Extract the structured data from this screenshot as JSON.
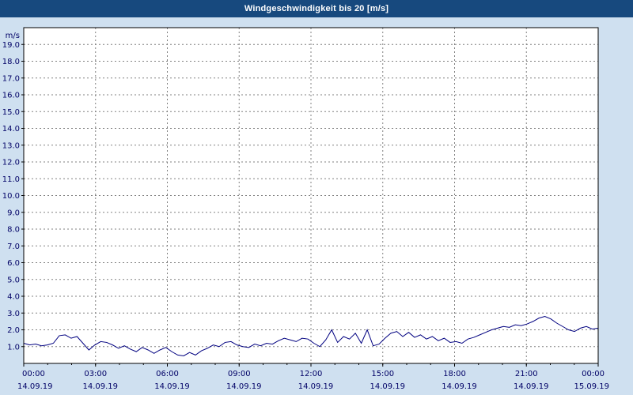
{
  "title_bar": {
    "label": "Windgeschwindigkeit bis 20 [m/s]"
  },
  "colors": {
    "title_bar_bg": "#17497e",
    "title_text": "#ffffff",
    "window_bg": "#cfe0f0",
    "plot_bg": "#ffffff",
    "plot_border": "#000000",
    "grid": "#808080",
    "line": "#000080",
    "tick_text": "#000066"
  },
  "chart_data": {
    "type": "line",
    "title": "Windgeschwindigkeit bis 20 [m/s]",
    "y_unit_label": "m/s",
    "ylim": [
      0,
      20
    ],
    "xlim_hours": [
      0,
      24
    ],
    "grid": "dashed",
    "y_ticks": [
      {
        "value": 1,
        "label": "1.0"
      },
      {
        "value": 2,
        "label": "2.0"
      },
      {
        "value": 3,
        "label": "3.0"
      },
      {
        "value": 4,
        "label": "4.0"
      },
      {
        "value": 5,
        "label": "5.0"
      },
      {
        "value": 6,
        "label": "6.0"
      },
      {
        "value": 7,
        "label": "7.0"
      },
      {
        "value": 8,
        "label": "8.0"
      },
      {
        "value": 9,
        "label": "9.0"
      },
      {
        "value": 10,
        "label": "10.0"
      },
      {
        "value": 11,
        "label": "11.0"
      },
      {
        "value": 12,
        "label": "12.0"
      },
      {
        "value": 13,
        "label": "13.0"
      },
      {
        "value": 14,
        "label": "14.0"
      },
      {
        "value": 15,
        "label": "15.0"
      },
      {
        "value": 16,
        "label": "16.0"
      },
      {
        "value": 17,
        "label": "17.0"
      },
      {
        "value": 18,
        "label": "18.0"
      },
      {
        "value": 19,
        "label": "19.0"
      }
    ],
    "x_ticks": [
      {
        "hour": 0,
        "time": "00:00",
        "date": "14.09.19"
      },
      {
        "hour": 3,
        "time": "03:00",
        "date": "14.09.19"
      },
      {
        "hour": 6,
        "time": "06:00",
        "date": "14.09.19"
      },
      {
        "hour": 9,
        "time": "09:00",
        "date": "14.09.19"
      },
      {
        "hour": 12,
        "time": "12:00",
        "date": "14.09.19"
      },
      {
        "hour": 15,
        "time": "15:00",
        "date": "14.09.19"
      },
      {
        "hour": 18,
        "time": "18:00",
        "date": "14.09.19"
      },
      {
        "hour": 21,
        "time": "21:00",
        "date": "14.09.19"
      },
      {
        "hour": 24,
        "time": "00:00",
        "date": "15.09.19"
      }
    ],
    "series": [
      {
        "name": "Windgeschwindigkeit",
        "color": "#000080",
        "interval_minutes": 15,
        "values": [
          1.2,
          1.1,
          1.15,
          1.05,
          1.1,
          1.2,
          1.65,
          1.7,
          1.5,
          1.6,
          1.2,
          0.8,
          1.1,
          1.3,
          1.25,
          1.1,
          0.9,
          1.05,
          0.85,
          0.7,
          0.95,
          0.8,
          0.6,
          0.8,
          0.95,
          0.7,
          0.5,
          0.45,
          0.65,
          0.5,
          0.75,
          0.9,
          1.1,
          1.0,
          1.25,
          1.3,
          1.1,
          1.0,
          0.95,
          1.15,
          1.05,
          1.2,
          1.15,
          1.35,
          1.5,
          1.4,
          1.3,
          1.5,
          1.45,
          1.2,
          1.0,
          1.4,
          2.0,
          1.25,
          1.6,
          1.45,
          1.8,
          1.2,
          2.0,
          1.05,
          1.15,
          1.5,
          1.8,
          1.9,
          1.6,
          1.85,
          1.55,
          1.7,
          1.45,
          1.6,
          1.35,
          1.5,
          1.25,
          1.3,
          1.2,
          1.45,
          1.55,
          1.7,
          1.85,
          2.0,
          2.1,
          2.2,
          2.15,
          2.3,
          2.25,
          2.35,
          2.5,
          2.7,
          2.8,
          2.65,
          2.4,
          2.2,
          2.0,
          1.9,
          2.1,
          2.2,
          2.05,
          2.1
        ]
      }
    ]
  }
}
